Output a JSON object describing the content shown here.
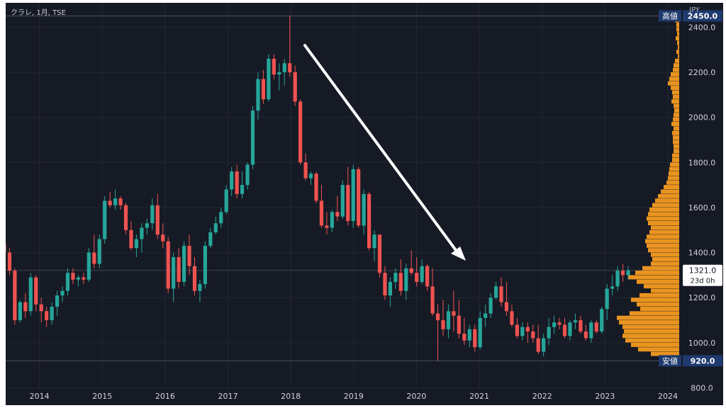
{
  "header": {
    "symbol": "クラレ, 1月, TSE",
    "currency": "JPY"
  },
  "chart_data": {
    "type": "candlestick",
    "interval": "1月",
    "symbol": "クラレ",
    "exchange": "TSE",
    "currency": "JPY",
    "ylim": [
      720,
      2530
    ],
    "y_ticks": [
      800,
      1000,
      1200,
      1400,
      1600,
      1800,
      2000,
      2200,
      2400
    ],
    "y_tick_labels": [
      "800.0",
      "1000.0",
      "1200.0",
      "1400.0",
      "1600.0",
      "1800.0",
      "2000.0",
      "2200.0",
      "2400.0"
    ],
    "x_ticks": [
      2014,
      2015,
      2016,
      2017,
      2018,
      2019,
      2020,
      2021,
      2022,
      2023,
      2024
    ],
    "x_tick_labels": [
      "2014",
      "2015",
      "2016",
      "2017",
      "2018",
      "2019",
      "2020",
      "2021",
      "2022",
      "2023",
      "2024"
    ],
    "x_range": [
      2013.35,
      2024.35
    ],
    "high": {
      "label": "高値",
      "value": 2450.0,
      "value_label": "2450.0"
    },
    "low": {
      "label": "安値",
      "value": 920.0,
      "value_label": "920.0"
    },
    "last": {
      "value": 1321.0,
      "value_label": "1321.0",
      "countdown": "23d 0h"
    },
    "colors": {
      "up": "#26a69a",
      "down": "#ef5350",
      "profile": "#ea9420",
      "arrow": "#ffffff",
      "label_bg": "#1e3a6e"
    },
    "candles": [
      [
        1440,
        1460,
        1380,
        1400
      ],
      [
        1400,
        1420,
        1300,
        1320
      ],
      [
        1320,
        1330,
        1080,
        1100
      ],
      [
        1100,
        1190,
        1090,
        1180
      ],
      [
        1180,
        1220,
        1110,
        1140
      ],
      [
        1140,
        1310,
        1120,
        1290
      ],
      [
        1290,
        1300,
        1140,
        1170
      ],
      [
        1170,
        1200,
        1090,
        1140
      ],
      [
        1140,
        1160,
        1070,
        1100
      ],
      [
        1100,
        1180,
        1080,
        1160
      ],
      [
        1160,
        1230,
        1120,
        1210
      ],
      [
        1210,
        1250,
        1180,
        1230
      ],
      [
        1230,
        1330,
        1210,
        1310
      ],
      [
        1310,
        1330,
        1260,
        1280
      ],
      [
        1280,
        1300,
        1250,
        1290
      ],
      [
        1290,
        1310,
        1260,
        1280
      ],
      [
        1280,
        1420,
        1270,
        1400
      ],
      [
        1400,
        1480,
        1330,
        1350
      ],
      [
        1350,
        1480,
        1330,
        1460
      ],
      [
        1460,
        1650,
        1440,
        1630
      ],
      [
        1630,
        1670,
        1600,
        1610
      ],
      [
        1610,
        1680,
        1590,
        1640
      ],
      [
        1640,
        1650,
        1590,
        1610
      ],
      [
        1610,
        1620,
        1480,
        1500
      ],
      [
        1500,
        1540,
        1410,
        1420
      ],
      [
        1420,
        1480,
        1380,
        1460
      ],
      [
        1460,
        1530,
        1400,
        1510
      ],
      [
        1510,
        1550,
        1480,
        1530
      ],
      [
        1530,
        1640,
        1500,
        1610
      ],
      [
        1610,
        1660,
        1460,
        1480
      ],
      [
        1480,
        1530,
        1420,
        1450
      ],
      [
        1450,
        1470,
        1220,
        1240
      ],
      [
        1240,
        1400,
        1180,
        1380
      ],
      [
        1380,
        1420,
        1240,
        1270
      ],
      [
        1270,
        1450,
        1250,
        1430
      ],
      [
        1430,
        1480,
        1300,
        1340
      ],
      [
        1340,
        1380,
        1210,
        1230
      ],
      [
        1230,
        1280,
        1180,
        1260
      ],
      [
        1260,
        1450,
        1240,
        1430
      ],
      [
        1430,
        1510,
        1420,
        1490
      ],
      [
        1490,
        1560,
        1480,
        1530
      ],
      [
        1530,
        1600,
        1510,
        1580
      ],
      [
        1580,
        1700,
        1570,
        1680
      ],
      [
        1680,
        1780,
        1650,
        1760
      ],
      [
        1760,
        1790,
        1640,
        1660
      ],
      [
        1660,
        1760,
        1640,
        1700
      ],
      [
        1700,
        1800,
        1680,
        1790
      ],
      [
        1790,
        2050,
        1770,
        2030
      ],
      [
        2030,
        2200,
        1990,
        2170
      ],
      [
        2170,
        2210,
        2060,
        2080
      ],
      [
        2080,
        2280,
        2070,
        2260
      ],
      [
        2260,
        2280,
        2170,
        2190
      ],
      [
        2190,
        2240,
        2120,
        2200
      ],
      [
        2200,
        2260,
        2140,
        2240
      ],
      [
        2240,
        2450,
        2180,
        2200
      ],
      [
        2200,
        2230,
        2050,
        2070
      ],
      [
        2070,
        2080,
        1790,
        1800
      ],
      [
        1800,
        1840,
        1720,
        1730
      ],
      [
        1730,
        1760,
        1700,
        1750
      ],
      [
        1750,
        1760,
        1620,
        1630
      ],
      [
        1630,
        1700,
        1510,
        1520
      ],
      [
        1520,
        1580,
        1480,
        1510
      ],
      [
        1510,
        1590,
        1490,
        1580
      ],
      [
        1580,
        1650,
        1540,
        1560
      ],
      [
        1560,
        1720,
        1550,
        1700
      ],
      [
        1700,
        1780,
        1520,
        1540
      ],
      [
        1540,
        1790,
        1510,
        1770
      ],
      [
        1770,
        1780,
        1510,
        1520
      ],
      [
        1520,
        1680,
        1480,
        1660
      ],
      [
        1660,
        1670,
        1410,
        1420
      ],
      [
        1420,
        1500,
        1360,
        1480
      ],
      [
        1480,
        1480,
        1290,
        1310
      ],
      [
        1310,
        1340,
        1190,
        1210
      ],
      [
        1210,
        1290,
        1160,
        1270
      ],
      [
        1270,
        1330,
        1240,
        1310
      ],
      [
        1310,
        1370,
        1210,
        1230
      ],
      [
        1230,
        1350,
        1190,
        1330
      ],
      [
        1330,
        1410,
        1300,
        1310
      ],
      [
        1310,
        1380,
        1250,
        1270
      ],
      [
        1270,
        1370,
        1260,
        1340
      ],
      [
        1340,
        1350,
        1230,
        1250
      ],
      [
        1250,
        1330,
        1120,
        1130
      ],
      [
        1130,
        1170,
        920,
        1100
      ],
      [
        1100,
        1190,
        1030,
        1060
      ],
      [
        1060,
        1170,
        1020,
        1140
      ],
      [
        1140,
        1230,
        1050,
        1120
      ],
      [
        1120,
        1190,
        1020,
        1040
      ],
      [
        1040,
        1110,
        990,
        1010
      ],
      [
        1010,
        1080,
        980,
        1060
      ],
      [
        1060,
        1080,
        960,
        980
      ],
      [
        980,
        1140,
        970,
        1110
      ],
      [
        1110,
        1170,
        1070,
        1130
      ],
      [
        1130,
        1220,
        1110,
        1200
      ],
      [
        1200,
        1270,
        1190,
        1250
      ],
      [
        1250,
        1290,
        1160,
        1180
      ],
      [
        1180,
        1270,
        1120,
        1140
      ],
      [
        1140,
        1170,
        1070,
        1080
      ],
      [
        1080,
        1110,
        1020,
        1030
      ],
      [
        1030,
        1090,
        1010,
        1070
      ],
      [
        1070,
        1090,
        1000,
        1050
      ],
      [
        1050,
        1080,
        1000,
        1020
      ],
      [
        1020,
        1080,
        950,
        960
      ],
      [
        960,
        1040,
        940,
        1020
      ],
      [
        1020,
        1110,
        990,
        1070
      ],
      [
        1070,
        1120,
        1040,
        1090
      ],
      [
        1090,
        1110,
        1060,
        1080
      ],
      [
        1080,
        1110,
        1020,
        1030
      ],
      [
        1030,
        1100,
        1010,
        1090
      ],
      [
        1090,
        1130,
        1060,
        1100
      ],
      [
        1100,
        1120,
        1040,
        1050
      ],
      [
        1050,
        1080,
        1010,
        1020
      ],
      [
        1020,
        1100,
        1000,
        1090
      ],
      [
        1090,
        1100,
        1040,
        1050
      ],
      [
        1050,
        1160,
        1040,
        1150
      ],
      [
        1150,
        1260,
        1100,
        1240
      ],
      [
        1240,
        1300,
        1210,
        1250
      ],
      [
        1250,
        1340,
        1230,
        1320
      ],
      [
        1320,
        1350,
        1270,
        1300
      ],
      [
        1300,
        1340,
        1280,
        1321
      ]
    ],
    "volume_profile": [
      [
        2430,
        6
      ],
      [
        2410,
        4
      ],
      [
        2390,
        4
      ],
      [
        2370,
        3
      ],
      [
        2350,
        5
      ],
      [
        2330,
        3
      ],
      [
        2310,
        2
      ],
      [
        2290,
        4
      ],
      [
        2270,
        2
      ],
      [
        2250,
        6
      ],
      [
        2230,
        8
      ],
      [
        2210,
        9
      ],
      [
        2190,
        12
      ],
      [
        2170,
        14
      ],
      [
        2150,
        16
      ],
      [
        2130,
        12
      ],
      [
        2110,
        10
      ],
      [
        2090,
        9
      ],
      [
        2070,
        11
      ],
      [
        2050,
        8
      ],
      [
        2030,
        7
      ],
      [
        2010,
        8
      ],
      [
        1990,
        9
      ],
      [
        1970,
        11
      ],
      [
        1950,
        8
      ],
      [
        1930,
        10
      ],
      [
        1910,
        9
      ],
      [
        1890,
        9
      ],
      [
        1870,
        8
      ],
      [
        1850,
        8
      ],
      [
        1830,
        10
      ],
      [
        1810,
        10
      ],
      [
        1790,
        13
      ],
      [
        1770,
        14
      ],
      [
        1750,
        15
      ],
      [
        1730,
        16
      ],
      [
        1710,
        18
      ],
      [
        1690,
        22
      ],
      [
        1670,
        26
      ],
      [
        1650,
        30
      ],
      [
        1630,
        34
      ],
      [
        1610,
        38
      ],
      [
        1590,
        42
      ],
      [
        1570,
        44
      ],
      [
        1550,
        46
      ],
      [
        1530,
        44
      ],
      [
        1510,
        40
      ],
      [
        1490,
        42
      ],
      [
        1470,
        46
      ],
      [
        1450,
        48
      ],
      [
        1430,
        46
      ],
      [
        1410,
        44
      ],
      [
        1390,
        40
      ],
      [
        1370,
        38
      ],
      [
        1350,
        40
      ],
      [
        1330,
        52
      ],
      [
        1310,
        62
      ],
      [
        1290,
        72
      ],
      [
        1270,
        60
      ],
      [
        1250,
        50
      ],
      [
        1230,
        40
      ],
      [
        1210,
        56
      ],
      [
        1190,
        68
      ],
      [
        1170,
        60
      ],
      [
        1150,
        55
      ],
      [
        1130,
        70
      ],
      [
        1110,
        88
      ],
      [
        1090,
        85
      ],
      [
        1070,
        80
      ],
      [
        1050,
        78
      ],
      [
        1030,
        80
      ],
      [
        1010,
        76
      ],
      [
        990,
        68
      ],
      [
        970,
        58
      ],
      [
        950,
        40
      ],
      [
        930,
        12
      ]
    ]
  }
}
